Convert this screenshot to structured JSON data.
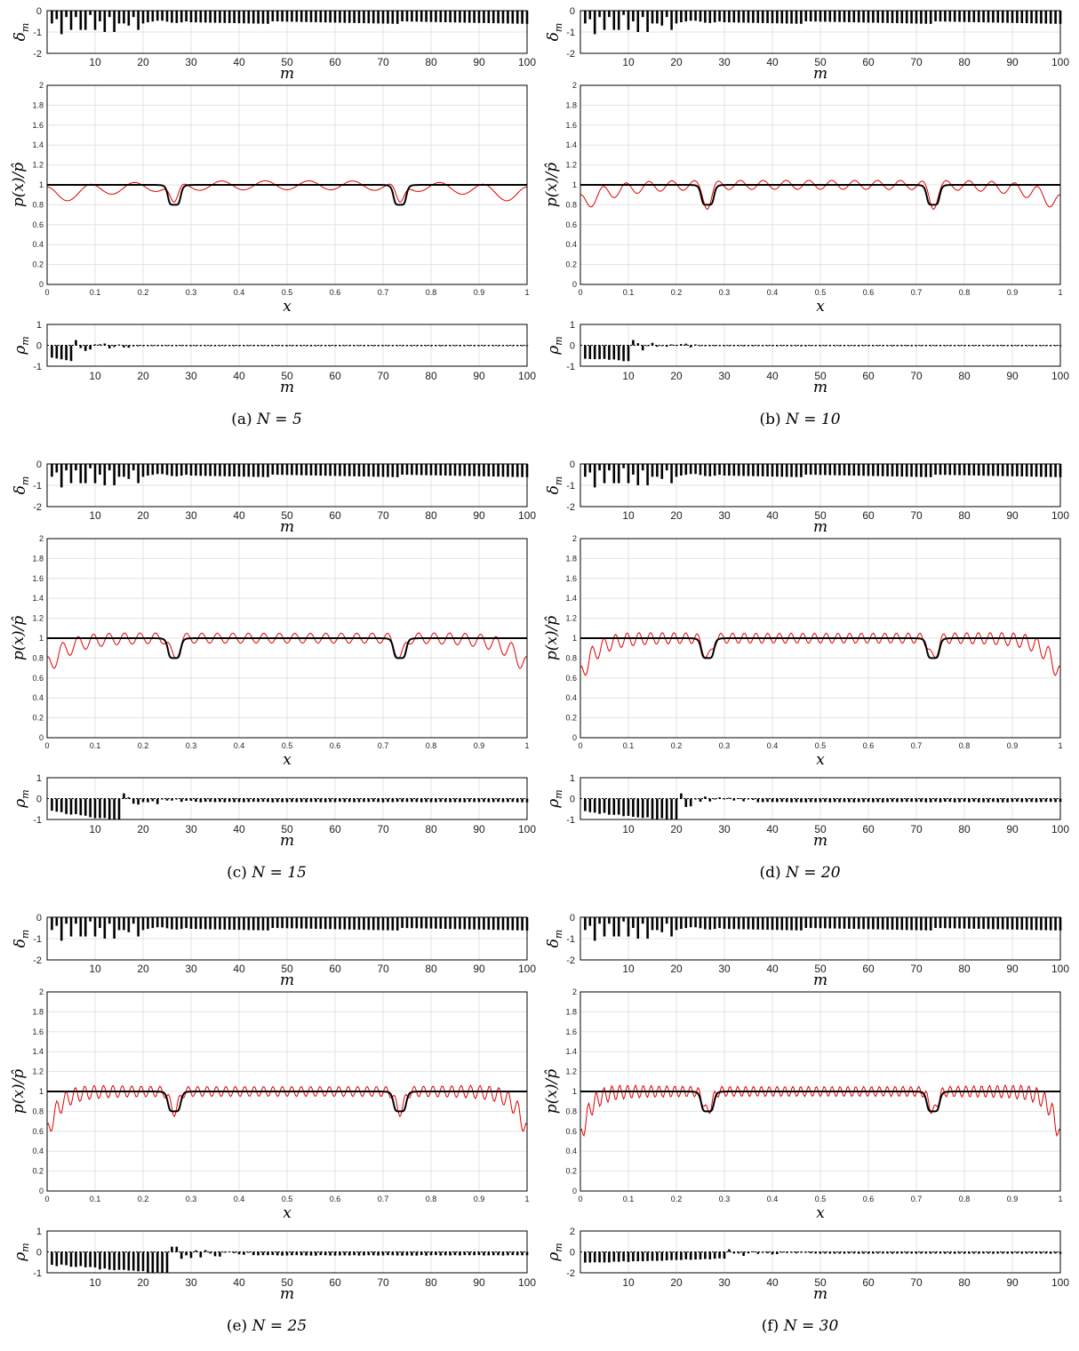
{
  "figure": {
    "panels": [
      {
        "id": "a",
        "caption_prefix": "(a)",
        "caption_eq": "N = 5",
        "N": 5,
        "rho_ylim": [
          -1,
          1
        ],
        "rho_yticks": [
          "-1",
          "0",
          "1"
        ]
      },
      {
        "id": "b",
        "caption_prefix": "(b)",
        "caption_eq": "N = 10",
        "N": 10,
        "rho_ylim": [
          -1,
          1
        ],
        "rho_yticks": [
          "-1",
          "0",
          "1"
        ]
      },
      {
        "id": "c",
        "caption_prefix": "(c)",
        "caption_eq": "N = 15",
        "N": 15,
        "rho_ylim": [
          -1,
          1
        ],
        "rho_yticks": [
          "-1",
          "0",
          "1"
        ]
      },
      {
        "id": "d",
        "caption_prefix": "(d)",
        "caption_eq": "N = 20",
        "N": 20,
        "rho_ylim": [
          -1,
          1
        ],
        "rho_yticks": [
          "-1",
          "0",
          "1"
        ]
      },
      {
        "id": "e",
        "caption_prefix": "(e)",
        "caption_eq": "N = 25",
        "N": 25,
        "rho_ylim": [
          -1,
          1
        ],
        "rho_yticks": [
          "-1",
          "0",
          "1"
        ]
      },
      {
        "id": "f",
        "caption_prefix": "(f)",
        "caption_eq": "N = 30",
        "N": 30,
        "rho_ylim": [
          -2,
          2
        ],
        "rho_yticks": [
          "-2",
          "0",
          "2"
        ]
      }
    ]
  },
  "chart_data": {
    "type": "line",
    "subplots": {
      "delta": {
        "type": "bar",
        "ylabel": "δm",
        "xlabel": "m",
        "xlim": [
          0,
          100
        ],
        "ylim": [
          -2,
          0
        ],
        "xticks": [
          10,
          20,
          30,
          40,
          50,
          60,
          70,
          80,
          90,
          100
        ],
        "yticks": [
          0,
          -1,
          -2
        ],
        "m": [
          1,
          100
        ],
        "values_description_free": true,
        "first_values": [
          -0.6,
          -0.4,
          -1.1,
          -0.3,
          -0.9,
          -0.3,
          -0.9,
          -0.9,
          -0.2,
          -0.9,
          -0.5,
          -1.0,
          -0.3,
          -1.0,
          -0.6,
          -0.6,
          -0.7,
          -0.3,
          -0.9,
          -0.6
        ],
        "tail_value": -0.6
      },
      "pressure": {
        "type": "line",
        "xlabel": "x",
        "ylabel": "p(x)/p̂",
        "xlim": [
          0,
          1
        ],
        "ylim": [
          0,
          2
        ],
        "xticks": [
          0,
          0.1,
          0.2,
          0.3,
          0.4,
          0.5,
          0.6,
          0.7,
          0.8,
          0.9,
          1
        ],
        "yticks": [
          0,
          0.2,
          0.4,
          0.6,
          0.8,
          1,
          1.2,
          1.4,
          1.6,
          1.8,
          2
        ],
        "series": [
          {
            "color": "#000000",
            "base": 1.0,
            "dips": [
              {
                "x": 0.265,
                "depth": 0.2
              },
              {
                "x": 0.735,
                "depth": 0.2
              }
            ]
          },
          {
            "color": "#e00000"
          }
        ],
        "red_edge_values": {
          "5": 0.88,
          "10": 0.8,
          "15": 0.7,
          "20": 0.6,
          "25": 0.56,
          "30": 0.5
        }
      },
      "rho": {
        "type": "bar",
        "ylabel": "ρm",
        "xlabel": "m",
        "xlim": [
          0,
          100
        ],
        "xticks": [
          10,
          20,
          30,
          40,
          50,
          60,
          70,
          80,
          90,
          100
        ]
      }
    }
  },
  "labels": {
    "delta_ylabel_main": "δ",
    "delta_ylabel_sub": "m",
    "rho_ylabel_main": "ρ",
    "rho_ylabel_sub": "m",
    "p_ylabel": "p(x)/p̂",
    "m_label": "m",
    "x_label": "x"
  },
  "colors": {
    "black_curve": "#000000",
    "red_curve": "#e00000",
    "grid": "#e3e3e3",
    "bars": "#000000"
  }
}
